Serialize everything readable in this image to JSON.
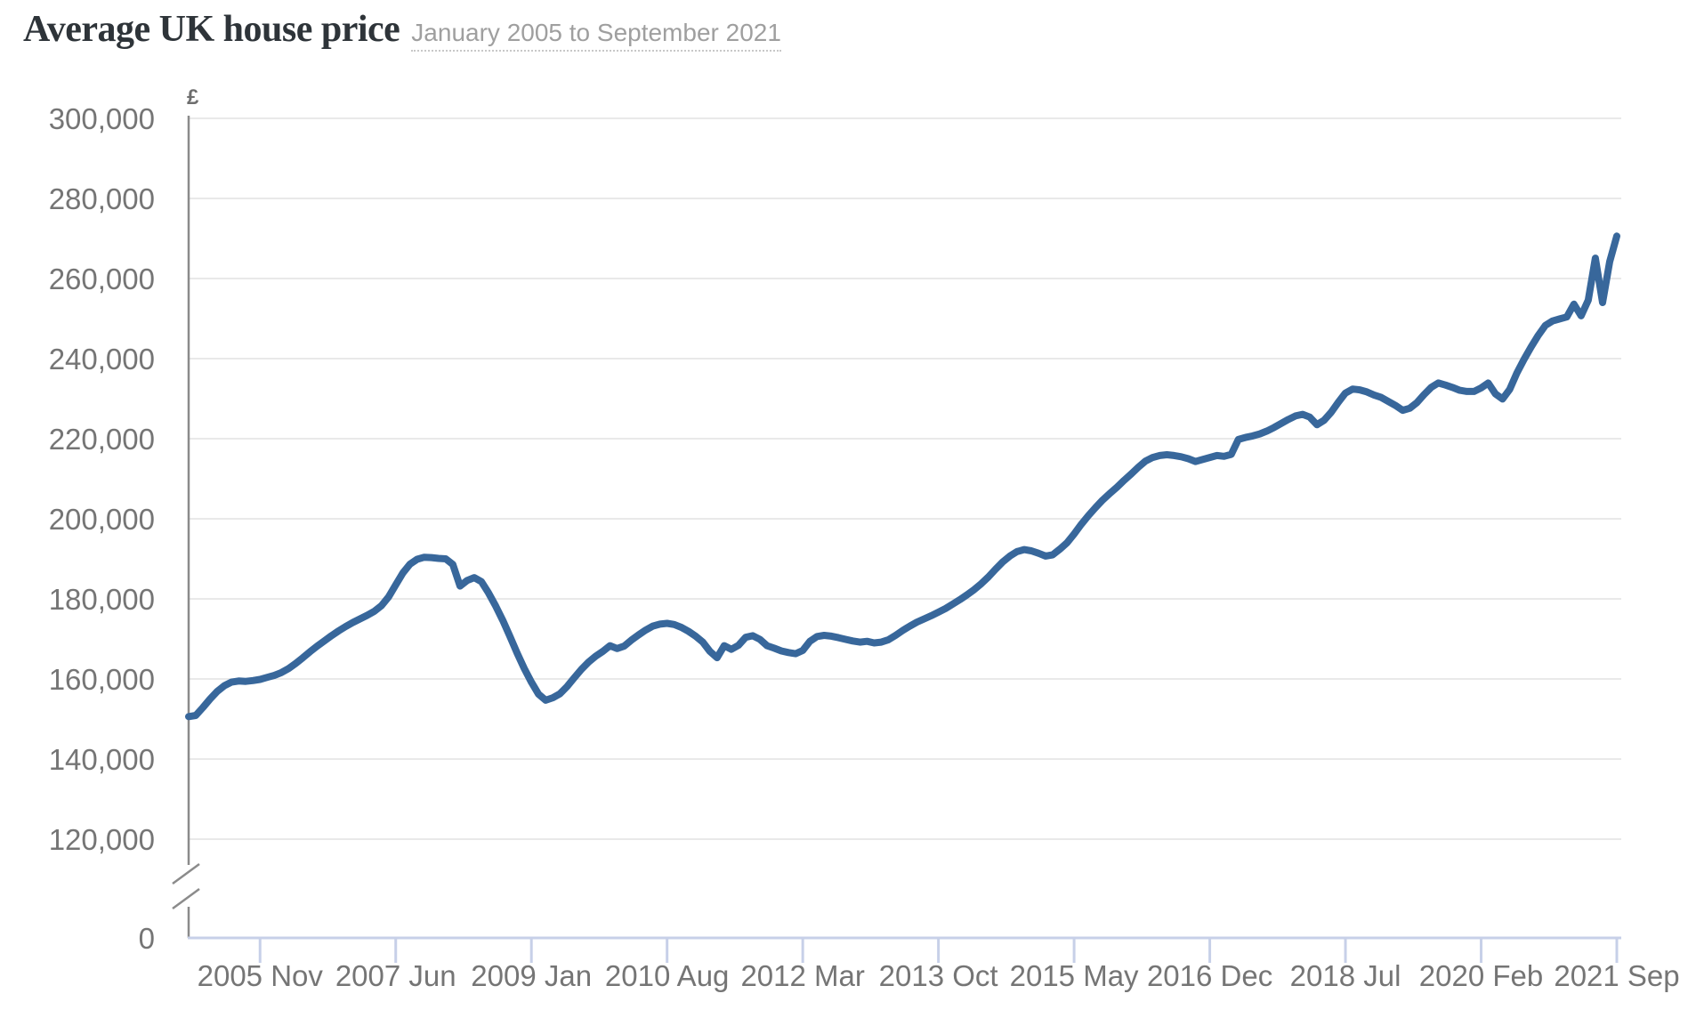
{
  "header": {
    "title": "Average UK house price",
    "subtitle": "January 2005 to September 2021"
  },
  "chart_data": {
    "type": "line",
    "title": "Average UK house price",
    "subtitle": "January 2005 to September 2021",
    "unit_symbol": "£",
    "x_start": "2005-01",
    "x_end": "2021-09",
    "x_months_total": 201,
    "x_tick_labels": [
      "2005 Nov",
      "2007 Jun",
      "2009 Jan",
      "2010 Aug",
      "2012 Mar",
      "2013 Oct",
      "2015 May",
      "2016 Dec",
      "2018 Jul",
      "2020 Feb",
      "2021 Sep"
    ],
    "x_tick_month_indices": [
      10,
      29,
      48,
      67,
      86,
      105,
      124,
      143,
      162,
      181,
      200
    ],
    "y_ticks": [
      {
        "value": 300000,
        "label": "300,000"
      },
      {
        "value": 280000,
        "label": "280,000"
      },
      {
        "value": 260000,
        "label": "260,000"
      },
      {
        "value": 240000,
        "label": "240,000"
      },
      {
        "value": 220000,
        "label": "220,000"
      },
      {
        "value": 200000,
        "label": "200,000"
      },
      {
        "value": 180000,
        "label": "180,000"
      },
      {
        "value": 160000,
        "label": "160,000"
      },
      {
        "value": 140000,
        "label": "140,000"
      },
      {
        "value": 120000,
        "label": "120,000"
      },
      {
        "value": 0,
        "label": "0"
      }
    ],
    "ylim_linear": [
      120000,
      300000
    ],
    "y_axis_break": true,
    "grid": "horizontal-only",
    "legend": "none",
    "colors": {
      "line": "#38679b",
      "grid": "#e9e9e9",
      "y_axis": "#8b8b8b",
      "x_axis": "#c7d0e8",
      "tick_label": "#757575",
      "unit_symbol": "#6e6e6e",
      "title": "#2e3439",
      "subtitle": "#9f9f9f"
    },
    "series": [
      {
        "name": "Average UK house price",
        "values": [
          150600,
          150900,
          152900,
          155000,
          156900,
          158300,
          159200,
          159500,
          159400,
          159600,
          159900,
          160400,
          160900,
          161600,
          162600,
          163900,
          165300,
          166800,
          168200,
          169500,
          170800,
          172000,
          173100,
          174100,
          175000,
          175900,
          176900,
          178300,
          180500,
          183500,
          186500,
          188700,
          189900,
          190400,
          190300,
          190100,
          190000,
          188600,
          183200,
          184600,
          185300,
          184300,
          181500,
          178200,
          174600,
          170600,
          166500,
          162600,
          159200,
          156200,
          154700,
          155300,
          156300,
          158100,
          160300,
          162400,
          164200,
          165700,
          166900,
          168300,
          167600,
          168200,
          169700,
          171000,
          172200,
          173200,
          173700,
          173900,
          173600,
          172900,
          171900,
          170700,
          169200,
          166900,
          165300,
          168300,
          167400,
          168400,
          170400,
          170800,
          169900,
          168300,
          167700,
          167000,
          166600,
          166300,
          167100,
          169400,
          170600,
          170900,
          170700,
          170300,
          169900,
          169500,
          169200,
          169400,
          169000,
          169200,
          169800,
          170900,
          172100,
          173200,
          174200,
          175000,
          175800,
          176700,
          177600,
          178700,
          179800,
          181000,
          182300,
          183800,
          185500,
          187400,
          189200,
          190700,
          191800,
          192300,
          192000,
          191400,
          190700,
          191000,
          192400,
          194000,
          196200,
          198600,
          200800,
          202800,
          204700,
          206300,
          207900,
          209600,
          211200,
          212900,
          214400,
          215300,
          215800,
          216000,
          215800,
          215500,
          215000,
          214300,
          214800,
          215300,
          215800,
          215600,
          216100,
          219800,
          220300,
          220700,
          221200,
          221900,
          222800,
          223800,
          224800,
          225700,
          226100,
          225400,
          223500,
          224600,
          226600,
          229100,
          231400,
          232400,
          232200,
          231700,
          230900,
          230300,
          229300,
          228300,
          227100,
          227600,
          229000,
          231000,
          232800,
          233900,
          233400,
          232800,
          232100,
          231800,
          231800,
          232700,
          233900,
          231200,
          229900,
          232300,
          236400,
          239800,
          242900,
          245800,
          248300,
          249400,
          249900,
          250400,
          253600,
          250700,
          254600,
          265100,
          254000,
          264200,
          270600
        ]
      }
    ]
  }
}
